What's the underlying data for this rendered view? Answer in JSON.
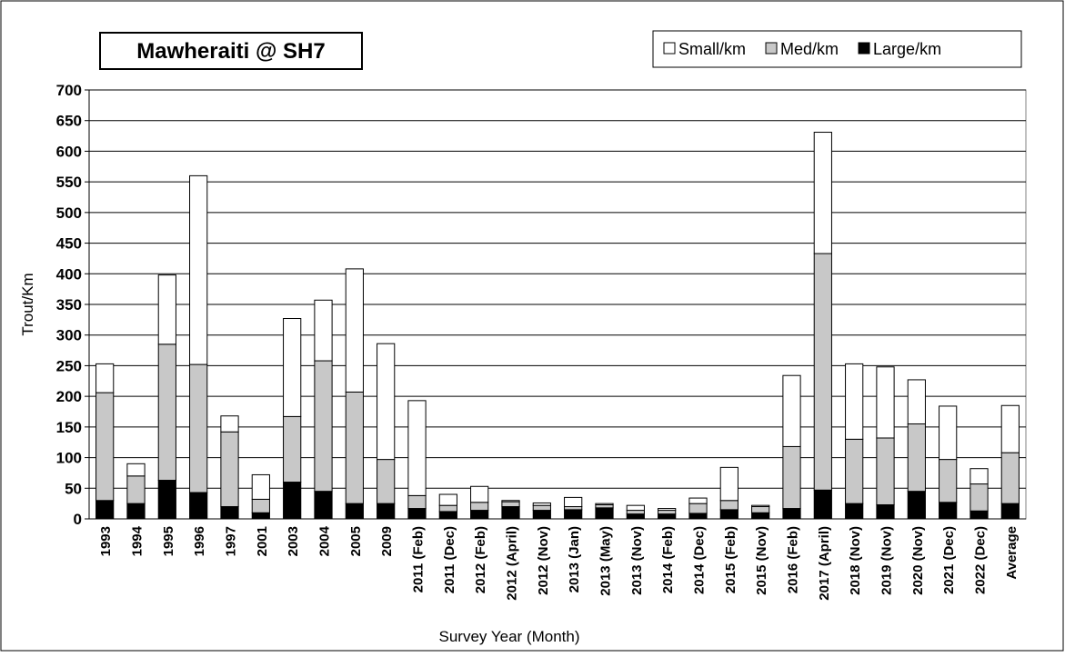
{
  "chart_data": {
    "type": "stacked_bar",
    "title": "Mawheraiti @ SH7",
    "x_label": "Survey Year (Month)",
    "y_label": "Trout/Km",
    "categories": [
      "1993",
      "1994",
      "1995",
      "1996",
      "1997",
      "2001",
      "2003",
      "2004",
      "2005",
      "2009",
      "2011 (Feb)",
      "2011 (Dec)",
      "2012 (Feb)",
      "2012 (April)",
      "2012 (Nov)",
      "2013 (Jan)",
      "2013 (May)",
      "2013 (Nov)",
      "2014 (Feb)",
      "2014 (Dec)",
      "2015 (Feb)",
      "2015 (Nov)",
      "2016 (Feb)",
      "2017 (April)",
      "2018 (Nov)",
      "2019 (Nov)",
      "2020 (Nov)",
      "2021 (Dec)",
      "2022 (Dec)",
      "Average"
    ],
    "series": [
      {
        "name": "Small/km",
        "color": "#ffffff",
        "values": [
          47,
          20,
          113,
          308,
          26,
          40,
          160,
          99,
          201,
          189,
          155,
          18,
          26,
          2,
          4,
          15,
          2,
          8,
          3,
          9,
          54,
          2,
          116,
          198,
          123,
          116,
          72,
          87,
          25,
          77
        ]
      },
      {
        "name": "Med/km",
        "color": "#c8c8c8",
        "values": [
          176,
          45,
          222,
          209,
          122,
          22,
          107,
          213,
          182,
          72,
          21,
          10,
          13,
          8,
          8,
          5,
          5,
          6,
          6,
          16,
          15,
          10,
          101,
          386,
          105,
          109,
          110,
          70,
          44,
          83
        ]
      },
      {
        "name": "Large/km",
        "color": "#000000",
        "values": [
          30,
          25,
          63,
          43,
          20,
          10,
          60,
          45,
          25,
          25,
          17,
          12,
          14,
          20,
          14,
          15,
          18,
          8,
          8,
          9,
          15,
          10,
          17,
          47,
          25,
          23,
          45,
          27,
          13,
          25
        ]
      }
    ],
    "ylim": [
      0,
      700
    ],
    "yticks": [
      0,
      50,
      100,
      150,
      200,
      250,
      300,
      350,
      400,
      450,
      500,
      550,
      600,
      650,
      700
    ],
    "grid": true
  }
}
